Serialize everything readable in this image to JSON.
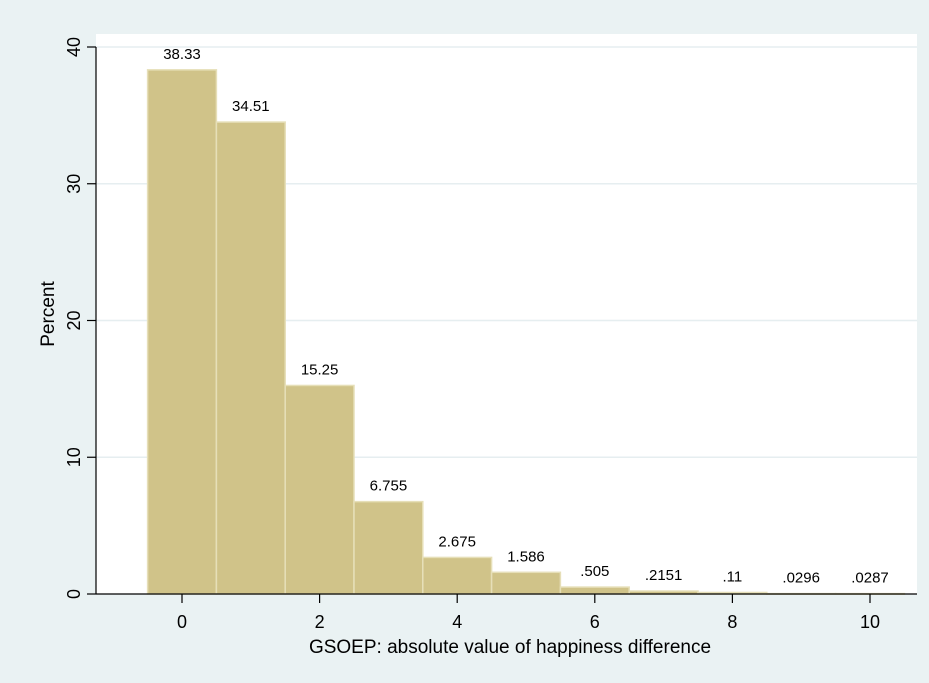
{
  "chart_data": {
    "type": "bar",
    "title": "",
    "xlabel": "GSOEP: absolute  value of happiness difference",
    "ylabel": "Percent",
    "x": [
      0,
      1,
      2,
      3,
      4,
      5,
      6,
      7,
      8,
      9,
      10
    ],
    "values": [
      38.33,
      34.51,
      15.25,
      6.755,
      2.675,
      1.586,
      0.505,
      0.2151,
      0.11,
      0.0296,
      0.0287
    ],
    "value_labels": [
      "38.33",
      "34.51",
      "15.25",
      "6.755",
      "2.675",
      "1.586",
      ".505",
      ".2151",
      ".11",
      ".0296",
      ".0287"
    ],
    "xlim": [
      -1,
      11
    ],
    "ylim": [
      0,
      40
    ],
    "x_ticks": [
      0,
      2,
      4,
      6,
      8,
      10
    ],
    "x_tick_labels": [
      "0",
      "2",
      "4",
      "6",
      "8",
      "10"
    ],
    "y_ticks": [
      0,
      10,
      20,
      30,
      40
    ],
    "y_tick_labels": [
      "0",
      "10",
      "20",
      "30",
      "40"
    ],
    "grid": true,
    "legend": "none",
    "colors": {
      "bar_fill": "#d0c389",
      "bar_stroke": "#e6dfb8",
      "plot_background": "#ffffff",
      "outer_background": "#eaf2f3",
      "grid": "#e6eef0",
      "axis": "#000000"
    }
  }
}
